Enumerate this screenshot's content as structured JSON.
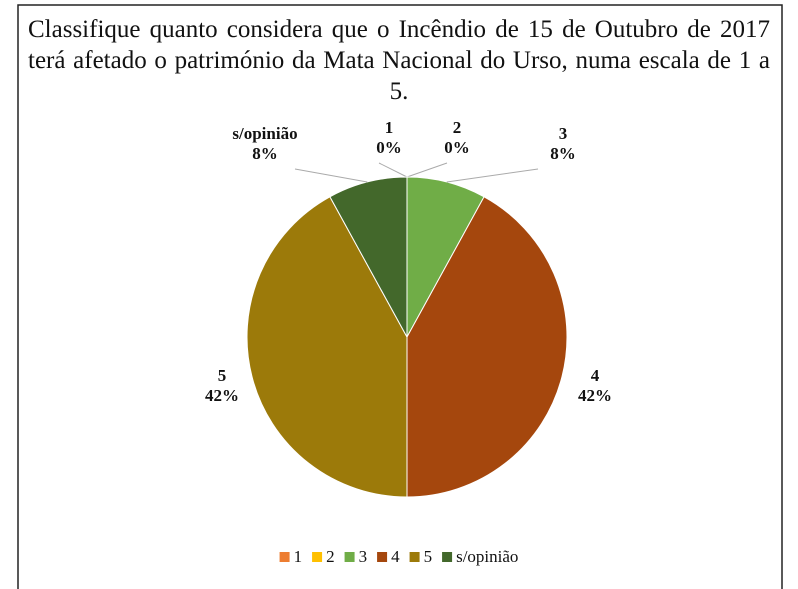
{
  "chart_data": {
    "type": "pie",
    "title": "Classifique quanto considera que o Incêndio de 15 de Outubro de 2017 terá afetado o património da Mata Nacional do Urso, numa escala de 1 a 5.",
    "categories": [
      "1",
      "2",
      "3",
      "4",
      "5",
      "s/opinião"
    ],
    "values": [
      0,
      0,
      8,
      42,
      42,
      8
    ],
    "value_labels": [
      "0%",
      "0%",
      "8%",
      "42%",
      "42%",
      "8%"
    ],
    "colors": [
      "#ed7d31",
      "#ffc000",
      "#70ad47",
      "#a5470d",
      "#9c7a0a",
      "#43682b"
    ],
    "legend": "bottom"
  }
}
